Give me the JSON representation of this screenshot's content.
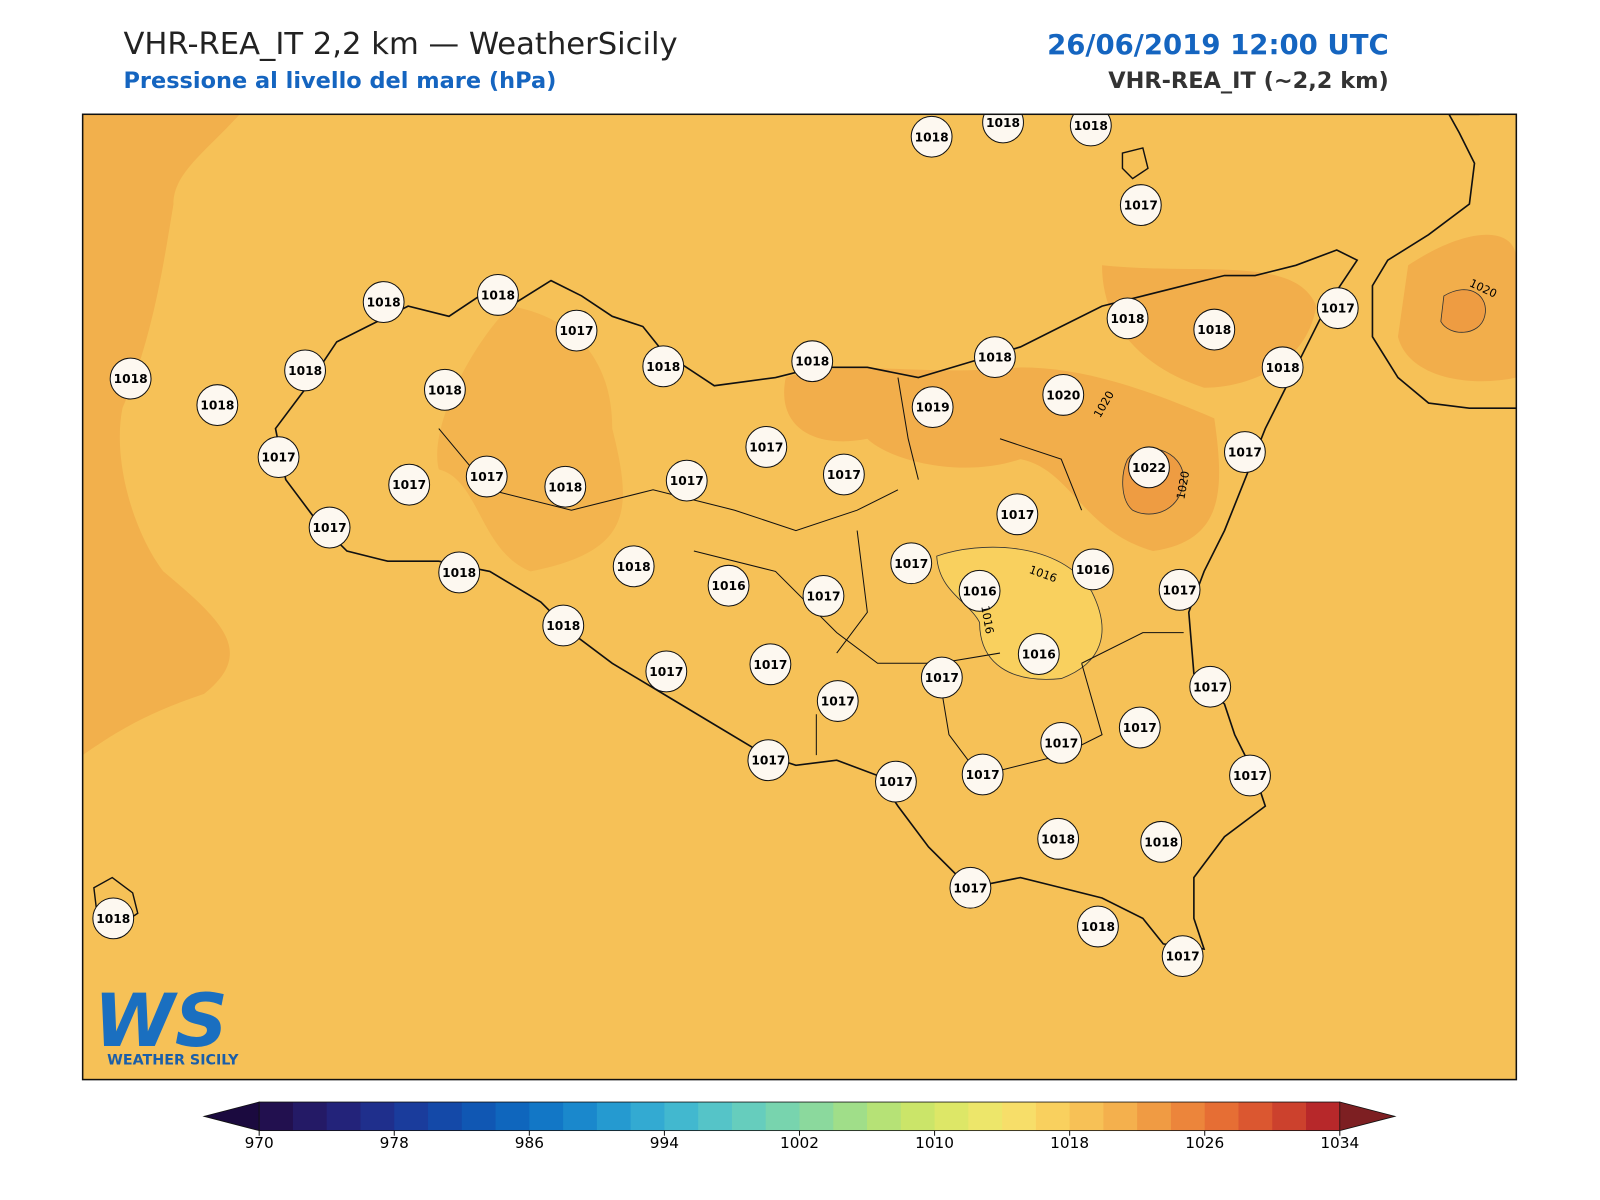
{
  "header": {
    "title": "VHR-REA_IT 2,2 km — WeatherSicily",
    "subtitle": "Pressione al livello del mare (hPa)",
    "datetime": "26/06/2019 12:00 UTC",
    "model": "VHR-REA_IT (~2,2 km)"
  },
  "map": {
    "stations": [
      1018,
      1018,
      1018,
      1017,
      1018,
      1018,
      1017,
      1017,
      1018,
      1018,
      1018,
      1018,
      1018,
      1018,
      1018,
      1018,
      1020,
      1018,
      1018,
      1019,
      1017,
      1017,
      1017,
      1017,
      1017,
      1018,
      1017,
      1017,
      1022,
      1017,
      1017,
      1017,
      1016,
      1018,
      1018,
      1016,
      1017,
      1016,
      1017,
      1018,
      1016,
      1017,
      1017,
      1017,
      1017,
      1017,
      1017,
      1017,
      1017,
      1017,
      1017,
      1017,
      1018,
      1018,
      1017,
      1018,
      1017,
      1018
    ],
    "contour_labels": [
      "1020",
      "1020",
      "1020",
      "1016",
      "1016"
    ]
  },
  "logo": {
    "mark": "WS",
    "text": "WEATHER SICILY"
  },
  "colorbar": {
    "min": 970,
    "max": 1034,
    "ticks": [
      970,
      978,
      986,
      994,
      1002,
      1010,
      1018,
      1026,
      1034
    ],
    "colors": [
      "#22104f",
      "#241a66",
      "#23237a",
      "#1f2f8c",
      "#1a3c9c",
      "#1449a8",
      "#1057b3",
      "#0f66bd",
      "#1277c6",
      "#1a88cc",
      "#259ad0",
      "#33aad2",
      "#42b8cf",
      "#55c4c8",
      "#66cdbd",
      "#78d4ae",
      "#8bd99d",
      "#a0de89",
      "#b6e276",
      "#cbe569",
      "#dde767",
      "#ede66a",
      "#f7de69",
      "#f9d05e",
      "#f7c156",
      "#f4b04d",
      "#f09b43",
      "#ec853b",
      "#e66e34",
      "#db5730",
      "#cc412d",
      "#b7282a"
    ],
    "under": "#1b0a3f",
    "over": "#7d1f22"
  }
}
